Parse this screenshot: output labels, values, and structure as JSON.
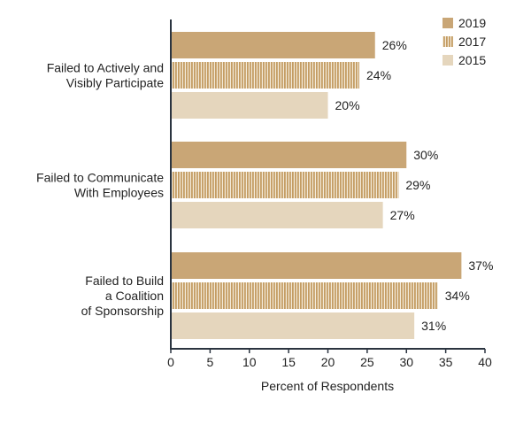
{
  "chart_data": {
    "type": "bar",
    "orientation": "horizontal",
    "categories": [
      [
        "Failed to Actively and",
        "Visibly Participate"
      ],
      [
        "Failed to Communicate",
        "With Employees"
      ],
      [
        "Failed to Build",
        "a Coalition",
        "of Sponsorship"
      ]
    ],
    "series": [
      {
        "name": "2019",
        "values": [
          26,
          30,
          37
        ],
        "color": "#c9a676",
        "pattern": "solid"
      },
      {
        "name": "2017",
        "values": [
          24,
          29,
          34
        ],
        "color": "#c9a676",
        "pattern": "vertical-stripes"
      },
      {
        "name": "2015",
        "values": [
          20,
          27,
          31
        ],
        "color": "#e5d6bd",
        "pattern": "solid"
      }
    ],
    "value_suffix": "%",
    "xlabel": "Percent of Respondents",
    "ylabel": "",
    "xlim": [
      0,
      40
    ],
    "xticks": [
      0,
      5,
      10,
      15,
      20,
      25,
      30,
      35,
      40
    ],
    "grid": false,
    "legend_position": "top-right",
    "axis_color": "#2b3440"
  }
}
